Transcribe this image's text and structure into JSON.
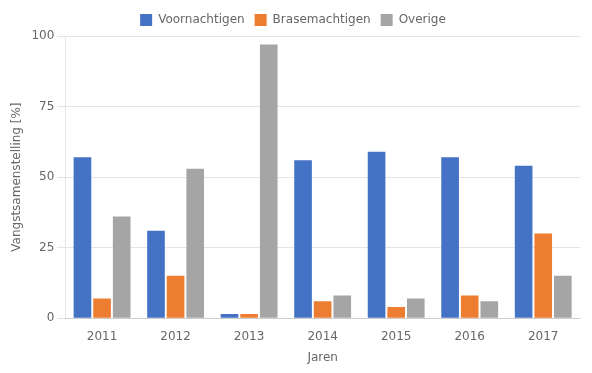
{
  "chart_data": {
    "type": "bar",
    "categories": [
      "2011",
      "2012",
      "2013",
      "2014",
      "2015",
      "2016",
      "2017"
    ],
    "series": [
      {
        "name": "Voornachtigen",
        "color": "#4472C4",
        "values": [
          57,
          31,
          1.5,
          56,
          59,
          57,
          54
        ]
      },
      {
        "name": "Brasemachtigen",
        "color": "#ED7D31",
        "values": [
          7,
          15,
          1.5,
          6,
          4,
          8,
          30
        ]
      },
      {
        "name": "Overige",
        "color": "#A5A5A5",
        "values": [
          36,
          53,
          97,
          8,
          7,
          6,
          15
        ]
      }
    ],
    "xlabel": "Jaren",
    "ylabel": "Vangstsamenstelling [%]",
    "ylim": [
      0,
      100
    ],
    "yticks": [
      0,
      25,
      50,
      75,
      100
    ],
    "grid": true,
    "legend": "top"
  }
}
